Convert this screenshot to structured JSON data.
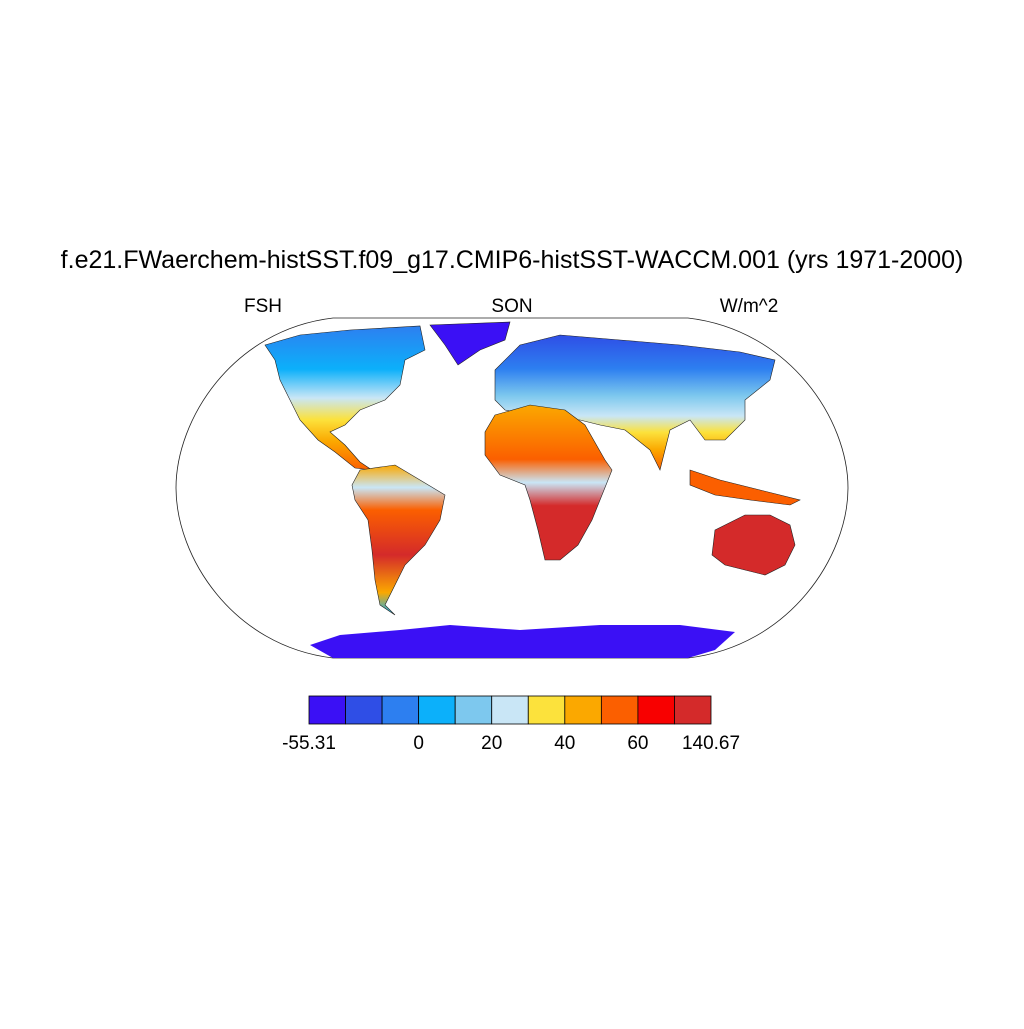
{
  "title": "f.e21.FWaerchem-histSST.f09_g17.CMIP6-histSST-WACCM.001 (yrs 1971-2000)",
  "subtitles": {
    "left": "FSH",
    "center": "SON",
    "right": "W/m^2"
  },
  "colorbar": {
    "colors": [
      "#3b10f5",
      "#2f4ee6",
      "#2d7ff0",
      "#0cb0fa",
      "#7dc8ee",
      "#c9e6f6",
      "#fce23c",
      "#fba800",
      "#fb5f00",
      "#f80000",
      "#d42a2a"
    ],
    "boundaries": [
      -55.31,
      null,
      null,
      0,
      null,
      20,
      null,
      40,
      null,
      60,
      null,
      140.67
    ]
  }
}
